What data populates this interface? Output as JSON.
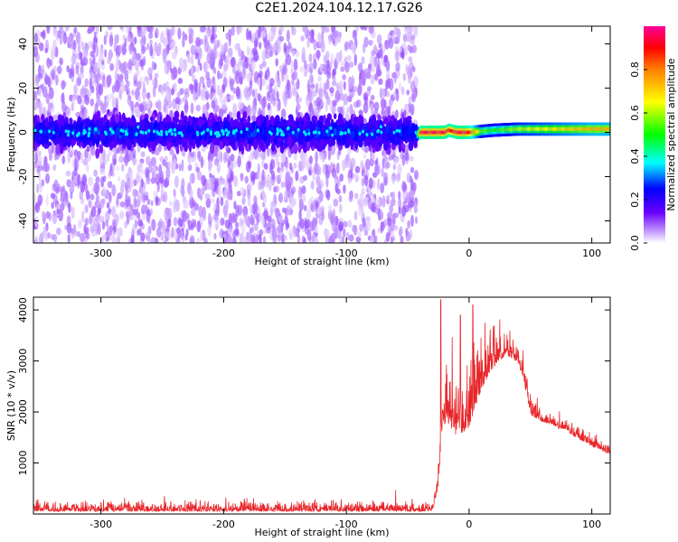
{
  "title": "C2E1.2024.104.12.17.G26",
  "chart_data": [
    {
      "type": "heatmap",
      "xlabel": "Height of straight line (km)",
      "ylabel": "Frequency (Hz)",
      "xlim": [
        -355,
        115
      ],
      "ylim": [
        -50,
        48
      ],
      "xticks": [
        -300,
        -200,
        -100,
        0,
        100
      ],
      "yticks": [
        -40,
        -20,
        0,
        20,
        40
      ],
      "noise_extent_x": [
        -355,
        -43
      ],
      "signal_line": {
        "x": [
          -43,
          -40,
          -30,
          -20,
          -17,
          -10,
          -5,
          0,
          10,
          20,
          40,
          60,
          80,
          100,
          115
        ],
        "y": [
          -1,
          0,
          0,
          0,
          1,
          0,
          0,
          0,
          0.5,
          1,
          1.5,
          1.5,
          1.5,
          1.5,
          1.5
        ],
        "amplitude": [
          0.4,
          0.95,
          0.95,
          0.95,
          0.9,
          0.95,
          0.95,
          0.9,
          0.55,
          0.5,
          0.6,
          0.65,
          0.7,
          0.75,
          0.75
        ]
      },
      "colorbar": {
        "label": "Normalized spectral amplitude",
        "ticks": [
          "0.0",
          "0.2",
          "0.4",
          "0.6",
          "0.8"
        ],
        "range": [
          0,
          1
        ]
      }
    },
    {
      "type": "line",
      "xlabel": "Height of straight line (km)",
      "ylabel": "SNR (10 * v/v)",
      "xlim": [
        -355,
        115
      ],
      "ylim": [
        0,
        4250
      ],
      "xticks": [
        -300,
        -200,
        -100,
        0,
        100
      ],
      "yticks": [
        1000,
        2000,
        3000,
        4000
      ],
      "series": [
        {
          "color": "#e8262a",
          "envelope": {
            "x": [
              -355,
              -30,
              -25,
              -22,
              -18,
              -15,
              -10,
              0,
              10,
              20,
              30,
              40,
              45,
              50,
              60,
              80,
              100,
              115
            ],
            "base": [
              80,
              80,
              600,
              1800,
              2000,
              1900,
              1700,
              1900,
              2600,
              3000,
              3200,
              3000,
              2650,
              2000,
              1850,
              1650,
              1350,
              1200
            ],
            "noise": [
              200,
              200,
              400,
              900,
              1200,
              1300,
              1400,
              1300,
              1000,
              800,
              500,
              400,
              500,
              450,
              300,
              250,
              220,
              200
            ],
            "peaks": [
              {
                "x": -23,
                "y": 4200
              },
              {
                "x": 3,
                "y": 4100
              },
              {
                "x": -7,
                "y": 3900
              }
            ]
          }
        }
      ]
    }
  ]
}
